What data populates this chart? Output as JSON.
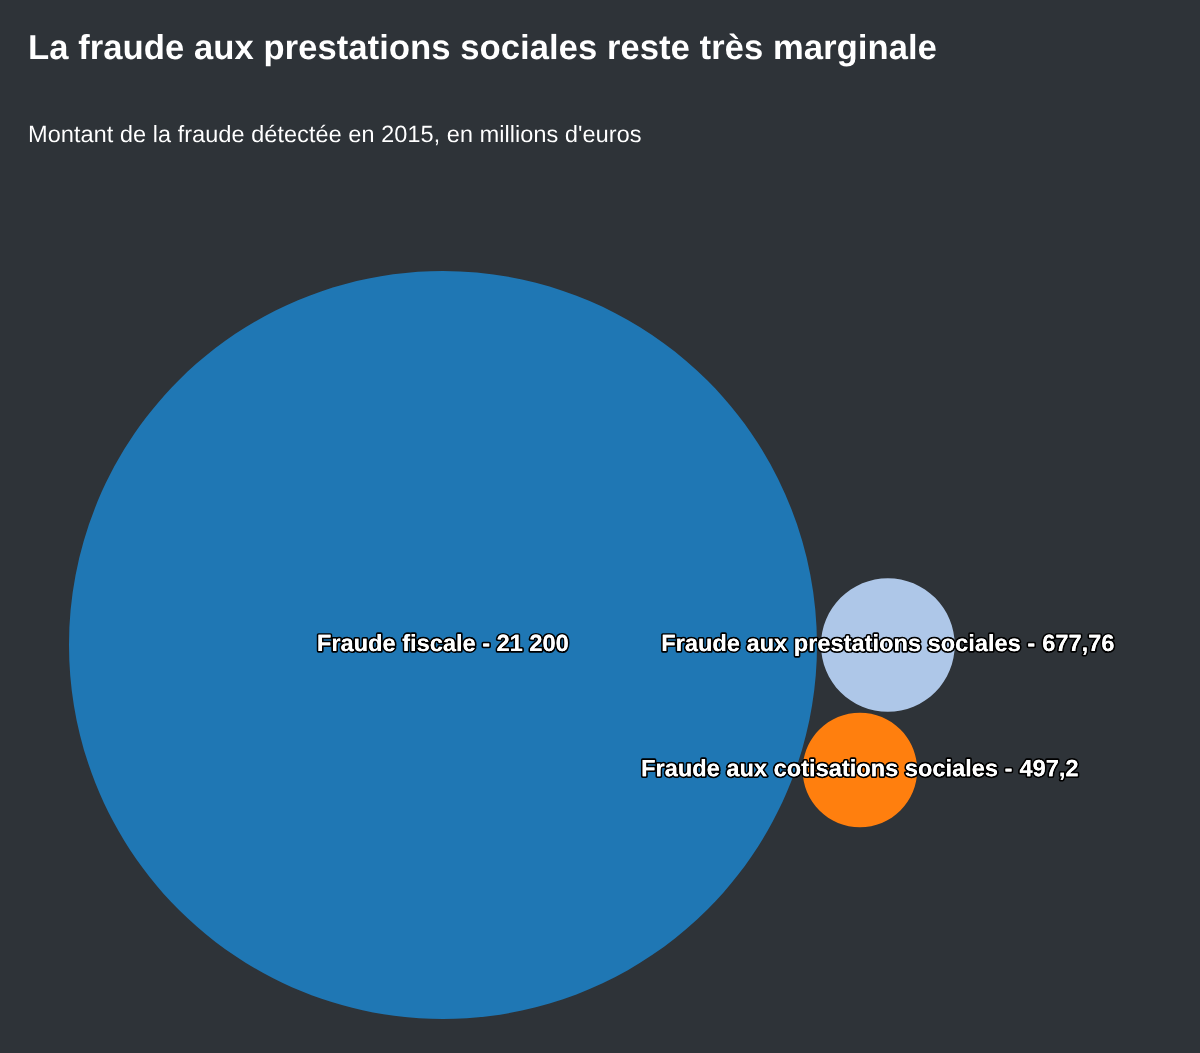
{
  "chart_data": {
    "type": "other",
    "title": "La fraude aux prestations sociales reste très marginale",
    "subtitle": "Montant de la fraude détectée en 2015, en millions d'euros",
    "categories": [
      "Fraude fiscale -",
      "Fraude aux prestations sociales -",
      "Fraude aux cotisations sociales -"
    ],
    "values": [
      21200,
      677.76,
      497.2
    ],
    "colors": [
      "#1f77b4",
      "#aec7e8",
      "#ff7f0e"
    ],
    "value_labels": [
      "21 200",
      "677,76",
      "497,2"
    ]
  }
}
